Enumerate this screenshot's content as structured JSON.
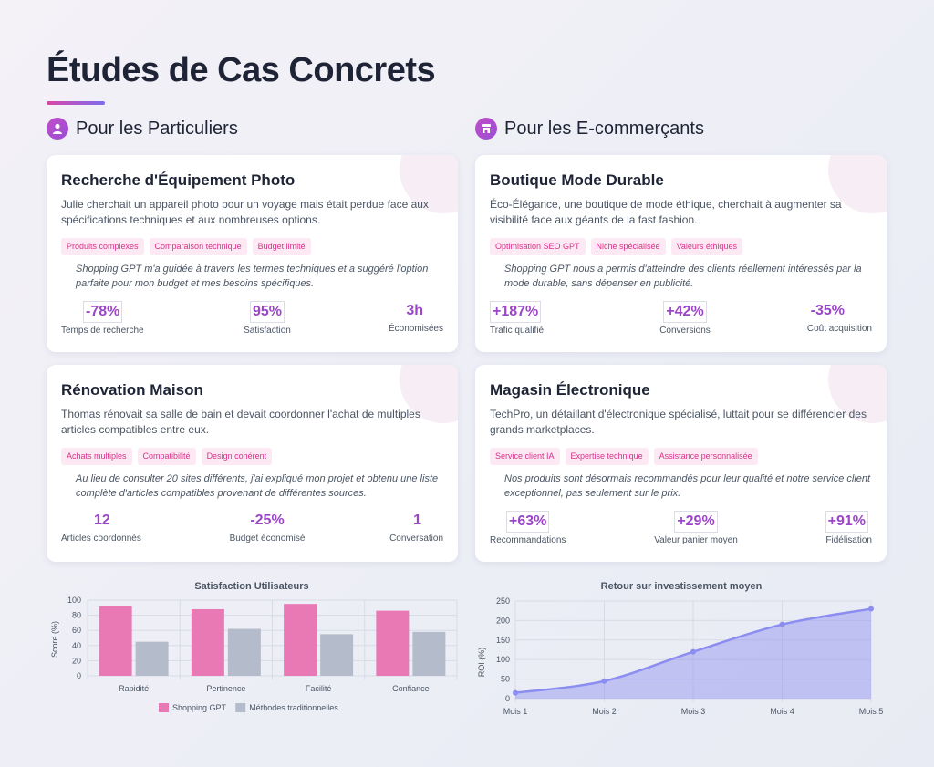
{
  "page": {
    "title": "Études de Cas Concrets"
  },
  "sections": [
    {
      "label": "Pour les Particuliers",
      "icon": "user-icon"
    },
    {
      "label": "Pour les E-commerçants",
      "icon": "store-icon"
    }
  ],
  "cards": [
    {
      "title": "Recherche d'Équipement Photo",
      "description": "Julie cherchait un appareil photo pour un voyage mais était perdue face aux spécifications techniques et aux nombreuses options.",
      "tags": [
        "Produits complexes",
        "Comparaison technique",
        "Budget limité"
      ],
      "quote": "Shopping GPT m'a guidée à travers les termes techniques et a suggéré l'option parfaite pour mon budget et mes besoins spécifiques.",
      "stats": [
        {
          "value": "-78%",
          "label": "Temps de recherche"
        },
        {
          "value": "95%",
          "label": "Satisfaction"
        },
        {
          "value": "3h",
          "label": "Économisées"
        }
      ]
    },
    {
      "title": "Boutique Mode Durable",
      "description": "Éco-Élégance, une boutique de mode éthique, cherchait à augmenter sa visibilité face aux géants de la fast fashion.",
      "tags": [
        "Optimisation SEO GPT",
        "Niche spécialisée",
        "Valeurs éthiques"
      ],
      "quote": "Shopping GPT nous a permis d'atteindre des clients réellement intéressés par la mode durable, sans dépenser en publicité.",
      "stats": [
        {
          "value": "+187%",
          "label": "Trafic qualifié"
        },
        {
          "value": "+42%",
          "label": "Conversions"
        },
        {
          "value": "-35%",
          "label": "Coût acquisition"
        }
      ]
    },
    {
      "title": "Rénovation Maison",
      "description": "Thomas rénovait sa salle de bain et devait coordonner l'achat de multiples articles compatibles entre eux.",
      "tags": [
        "Achats multiples",
        "Compatibilité",
        "Design cohérent"
      ],
      "quote": "Au lieu de consulter 20 sites différents, j'ai expliqué mon projet et obtenu une liste complète d'articles compatibles provenant de différentes sources.",
      "stats": [
        {
          "value": "12",
          "label": "Articles coordonnés"
        },
        {
          "value": "-25%",
          "label": "Budget économisé"
        },
        {
          "value": "1",
          "label": "Conversation"
        }
      ]
    },
    {
      "title": "Magasin Électronique",
      "description": "TechPro, un détaillant d'électronique spécialisé, luttait pour se différencier des grands marketplaces.",
      "tags": [
        "Service client IA",
        "Expertise technique",
        "Assistance personnalisée"
      ],
      "quote": "Nos produits sont désormais recommandés pour leur qualité et notre service client exceptionnel, pas seulement sur le prix.",
      "stats": [
        {
          "value": "+63%",
          "label": "Recommandations"
        },
        {
          "value": "+29%",
          "label": "Valeur panier moyen"
        },
        {
          "value": "+91%",
          "label": "Fidélisation"
        }
      ]
    }
  ],
  "chart_data": [
    {
      "type": "bar",
      "title": "Satisfaction Utilisateurs",
      "categories": [
        "Rapidité",
        "Pertinence",
        "Facilité",
        "Confiance"
      ],
      "series": [
        {
          "name": "Shopping GPT",
          "values": [
            92,
            88,
            95,
            86
          ],
          "color": "#e879b4"
        },
        {
          "name": "Méthodes traditionnelles",
          "values": [
            45,
            62,
            55,
            58
          ],
          "color": "#b4bccb"
        }
      ],
      "ylabel": "Score (%)",
      "ylim": [
        0,
        100
      ],
      "yticks": [
        0,
        20,
        40,
        60,
        80,
        100
      ],
      "grid": true,
      "legend": "bottom"
    },
    {
      "type": "area",
      "title": "Retour sur investissement moyen",
      "x": [
        "Mois 1",
        "Mois 2",
        "Mois 3",
        "Mois 4",
        "Mois 5"
      ],
      "series": [
        {
          "name": "",
          "values": [
            15,
            45,
            120,
            190,
            230
          ],
          "color": "#8b8df0"
        }
      ],
      "ylabel": "ROI (%)",
      "ylim": [
        0,
        250
      ],
      "yticks": [
        0,
        50,
        100,
        150,
        200,
        250
      ],
      "grid": true
    }
  ]
}
